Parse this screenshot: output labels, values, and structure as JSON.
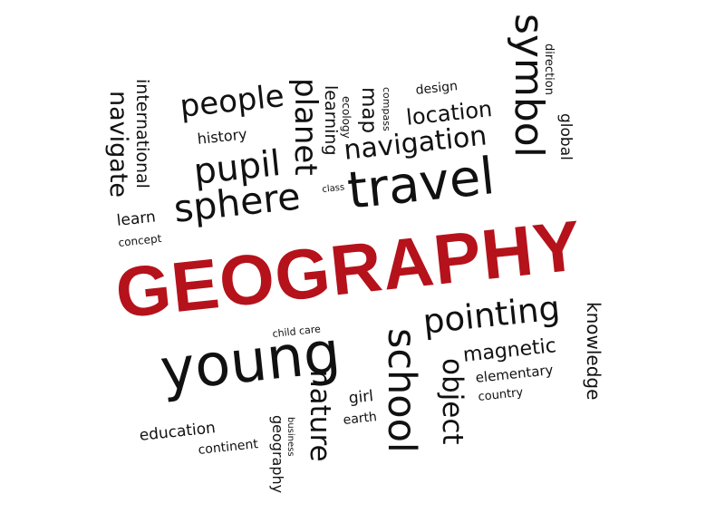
{
  "accent_color": "#b5121b",
  "title": "GEOGRAPHY",
  "words": {
    "symbol": "symbol",
    "direction": "direction",
    "global": "global",
    "international": "international",
    "navigate": "navigate",
    "people": "people",
    "planet": "planet",
    "learning": "learning",
    "ecology": "ecology",
    "map": "map",
    "compass": "compass",
    "design": "design",
    "location": "location",
    "history": "history",
    "pupil": "pupil",
    "navigation": "navigation",
    "sphere": "sphere",
    "class": "class",
    "travel": "travel",
    "learn": "learn",
    "concept": "concept",
    "child_care": "child care",
    "pointing": "pointing",
    "knowledge": "knowledge",
    "young": "young",
    "school": "school",
    "magnetic": "magnetic",
    "object": "object",
    "elementary": "elementary",
    "country": "country",
    "nature": "nature",
    "girl": "girl",
    "earth": "earth",
    "education": "education",
    "continent": "continent",
    "business": "business",
    "geography": "geography"
  }
}
